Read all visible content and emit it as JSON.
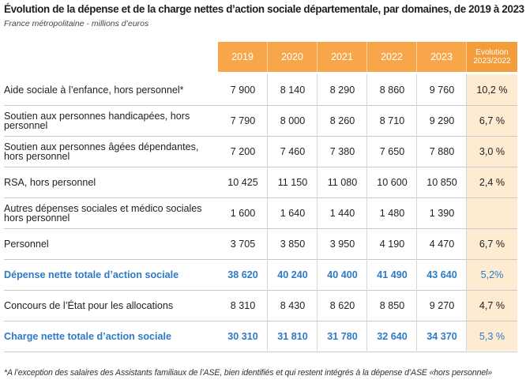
{
  "title": "Évolution de la dépense et de la charge nettes d’action sociale départementale, par domaines, de 2019 à 2023",
  "subtitle": "France métropolitaine - millions d’euros",
  "columns": [
    "2019",
    "2020",
    "2021",
    "2022",
    "2023"
  ],
  "evolution_header": [
    "Evolution",
    "2023/2022"
  ],
  "colors": {
    "header": "#f7a74a",
    "evolution_bg": "#fdebd2",
    "total_text": "#2f7ac6"
  },
  "rows": [
    {
      "label": "Aide sociale à l’enfance, hors personnel*",
      "values": [
        "7 900",
        "8 140",
        "8 290",
        "8 860",
        "9 760"
      ],
      "evolution": "10,2 %",
      "total": false
    },
    {
      "label": "Soutien aux personnes handicapées, hors personnel",
      "values": [
        "7 790",
        "8 000",
        "8 260",
        "8 710",
        "9 290"
      ],
      "evolution": "6,7 %",
      "total": false
    },
    {
      "label": "Soutien aux personnes âgées dépendantes, hors personnel",
      "values": [
        "7 200",
        "7 460",
        "7 380",
        "7 650",
        "7 880"
      ],
      "evolution": "3,0 %",
      "total": false
    },
    {
      "label": "RSA, hors personnel",
      "values": [
        "10 425",
        "11 150",
        "11 080",
        "10 600",
        "10 850"
      ],
      "evolution": "2,4 %",
      "total": false
    },
    {
      "label": "Autres dépenses sociales et médico sociales hors personnel",
      "values": [
        "1 600",
        "1 640",
        "1 440",
        "1 480",
        "1 390"
      ],
      "evolution": "",
      "total": false
    },
    {
      "label": "Personnel",
      "values": [
        "3 705",
        "3 850",
        "3 950",
        "4 190",
        "4 470"
      ],
      "evolution": "6,7 %",
      "total": false
    },
    {
      "label": "Dépense nette totale d’action sociale",
      "values": [
        "38 620",
        "40 240",
        "40 400",
        "41 490",
        "43 640"
      ],
      "evolution": "5,2%",
      "total": true
    },
    {
      "label": "Concours de l’État pour les allocations",
      "values": [
        "8 310",
        "8 430",
        "8 620",
        "8 850",
        "9 270"
      ],
      "evolution": "4,7 %",
      "total": false
    },
    {
      "label": "Charge nette totale d’action sociale",
      "values": [
        "30 310",
        "31 810",
        "31 780",
        "32 640",
        "34 370"
      ],
      "evolution": "5,3 %",
      "total": true
    }
  ],
  "footnote": "*A l’exception des salaires des Assistants familiaux de l’ASE, bien identifiés et qui restent intégrés à la dépense d’ASE «hors personnel»"
}
